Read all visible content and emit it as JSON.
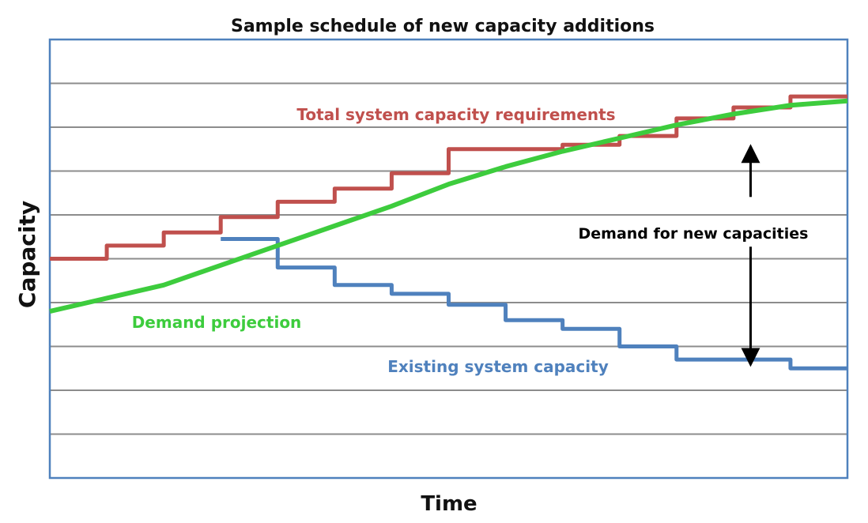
{
  "chart_data": {
    "type": "line",
    "title": "Sample schedule of new capacity additions",
    "xlabel": "Time",
    "ylabel": "Capacity",
    "x_range": [
      0,
      14
    ],
    "y_range": [
      0,
      10
    ],
    "grid": true,
    "legend": "none",
    "series": [
      {
        "name": "Total system capacity requirements",
        "key": "total",
        "color": "#C0504D",
        "step": true,
        "x": [
          0,
          1,
          2,
          3,
          4,
          5,
          6,
          7,
          8,
          9,
          10,
          11,
          12,
          13,
          14
        ],
        "values": [
          5.0,
          5.3,
          5.6,
          5.95,
          6.3,
          6.6,
          6.95,
          7.5,
          7.5,
          7.6,
          7.8,
          8.2,
          8.45,
          8.7,
          8.7
        ]
      },
      {
        "name": "Existing system capacity",
        "key": "existing",
        "color": "#4F81BD",
        "step": true,
        "x": [
          3,
          4,
          5,
          6,
          7,
          8,
          9,
          10,
          11,
          12,
          13,
          14
        ],
        "values": [
          5.45,
          4.8,
          4.4,
          4.2,
          3.95,
          3.6,
          3.4,
          3.0,
          2.7,
          2.7,
          2.5,
          2.5
        ]
      },
      {
        "name": "Demand projection",
        "key": "demand",
        "color": "#3DCC3D",
        "step": false,
        "x": [
          0,
          1,
          2,
          3,
          4,
          5,
          6,
          7,
          8,
          9,
          10,
          11,
          12,
          13,
          14
        ],
        "values": [
          3.8,
          4.1,
          4.4,
          4.85,
          5.3,
          5.75,
          6.2,
          6.7,
          7.1,
          7.45,
          7.75,
          8.05,
          8.3,
          8.5,
          8.6
        ]
      }
    ],
    "annotations": [
      {
        "key": "gap",
        "text": "Demand for new capacities",
        "x": 12.3,
        "y_top": 7.4,
        "y_bottom": 2.75
      }
    ]
  }
}
